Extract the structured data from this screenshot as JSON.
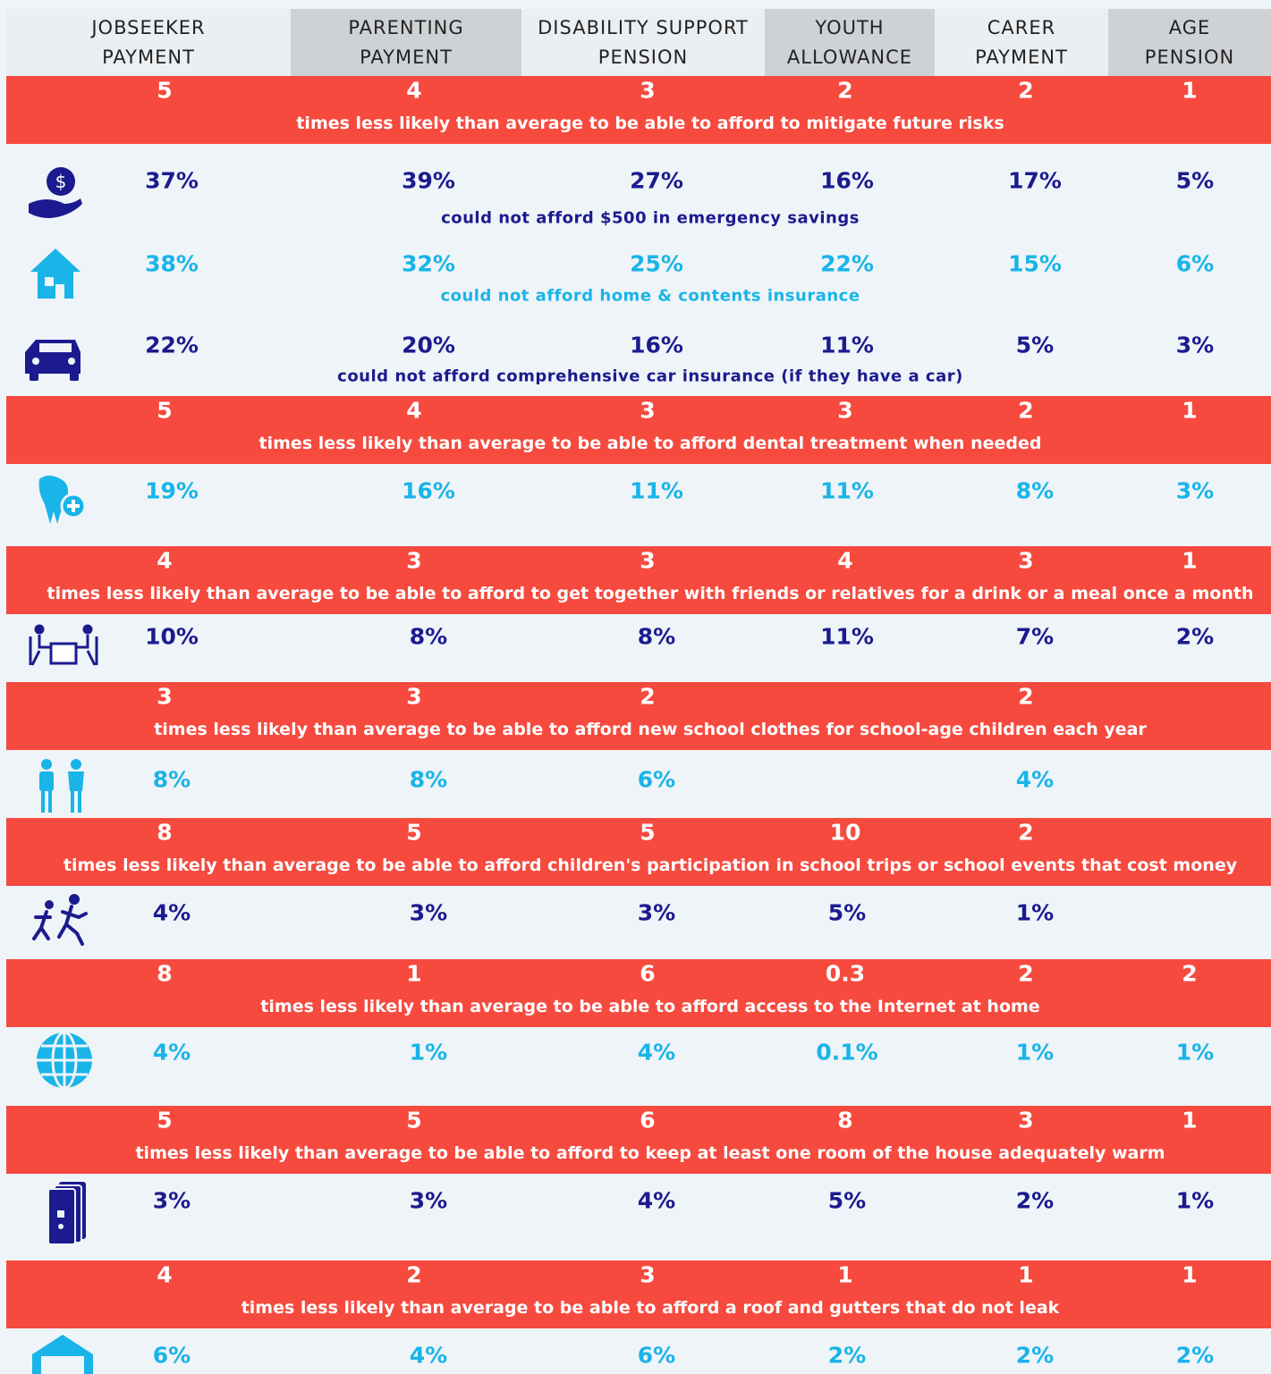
{
  "header": {
    "columns": [
      "JOBSEEKER PAYMENT",
      "PARENTING PAYMENT",
      "DISABILITY SUPPORT PENSION",
      "YOUTH ALLOWANCE",
      "CARER PAYMENT",
      "AGE PENSION"
    ]
  },
  "sections": [
    {
      "band": {
        "values": [
          "5",
          "4",
          "3",
          "2",
          "2",
          "1"
        ],
        "text": "times less likely than average to be able to afford to mitigate future risks"
      },
      "rows": [
        {
          "color": "#1b1b8f",
          "values": [
            "37%",
            "39%",
            "27%",
            "16%",
            "17%",
            "5%"
          ],
          "caption": "could not afford $500 in emergency savings"
        },
        {
          "color": "#19b4e8",
          "values": [
            "38%",
            "32%",
            "25%",
            "22%",
            "15%",
            "6%"
          ],
          "caption": "could not afford home & contents insurance"
        },
        {
          "color": "#1b1b8f",
          "values": [
            "22%",
            "20%",
            "16%",
            "11%",
            "5%",
            "3%"
          ],
          "caption": "could not afford comprehensive car insurance (if they have a car)"
        }
      ]
    },
    {
      "band": {
        "values": [
          "5",
          "4",
          "3",
          "3",
          "2",
          "1"
        ],
        "text": "times less likely than average to be able to afford dental treatment when needed"
      },
      "rows": [
        {
          "color": "#19b4e8",
          "values": [
            "19%",
            "16%",
            "11%",
            "11%",
            "8%",
            "3%"
          ]
        }
      ]
    },
    {
      "band": {
        "values": [
          "4",
          "3",
          "3",
          "4",
          "3",
          "1"
        ],
        "text": "times less likely than average to be able to afford to get together with friends or relatives for a drink or a meal once a month"
      },
      "rows": [
        {
          "color": "#1b1b8f",
          "values": [
            "10%",
            "8%",
            "8%",
            "11%",
            "7%",
            "2%"
          ]
        }
      ]
    },
    {
      "band": {
        "values": [
          "3",
          "3",
          "2",
          null,
          "2",
          null
        ],
        "text": "times less likely than average to be able to afford new school clothes for school-age children each year"
      },
      "rows": [
        {
          "color": "#19b4e8",
          "values": [
            "8%",
            "8%",
            "6%",
            null,
            "4%",
            null
          ]
        }
      ]
    },
    {
      "band": {
        "values": [
          "8",
          "5",
          "5",
          "10",
          "2",
          null
        ],
        "text": "times less likely than average to be able to afford children's participation in school trips or school events that cost money"
      },
      "rows": [
        {
          "color": "#1b1b8f",
          "values": [
            "4%",
            "3%",
            "3%",
            "5%",
            "1%",
            null
          ]
        }
      ]
    },
    {
      "band": {
        "values": [
          "8",
          "1",
          "6",
          "0.3",
          "2",
          "2"
        ],
        "text": "times less likely than average to be able to afford access to the Internet at home"
      },
      "rows": [
        {
          "color": "#19b4e8",
          "values": [
            "4%",
            "1%",
            "4%",
            "0.1%",
            "1%",
            "1%"
          ]
        }
      ]
    },
    {
      "band": {
        "values": [
          "5",
          "5",
          "6",
          "8",
          "3",
          "1"
        ],
        "text": "times less likely than average to be able to afford to keep at least one room of the house adequately warm"
      },
      "rows": [
        {
          "color": "#1b1b8f",
          "values": [
            "3%",
            "3%",
            "4%",
            "5%",
            "2%",
            "1%"
          ]
        }
      ]
    },
    {
      "band": {
        "values": [
          "4",
          "2",
          "3",
          "1",
          "1",
          "1"
        ],
        "text": "times less likely than average to be able to afford a roof and gutters that do not leak"
      },
      "rows": [
        {
          "color": "#19b4e8",
          "values": [
            "6%",
            "4%",
            "6%",
            "2%",
            "2%",
            "2%"
          ]
        }
      ]
    }
  ]
}
